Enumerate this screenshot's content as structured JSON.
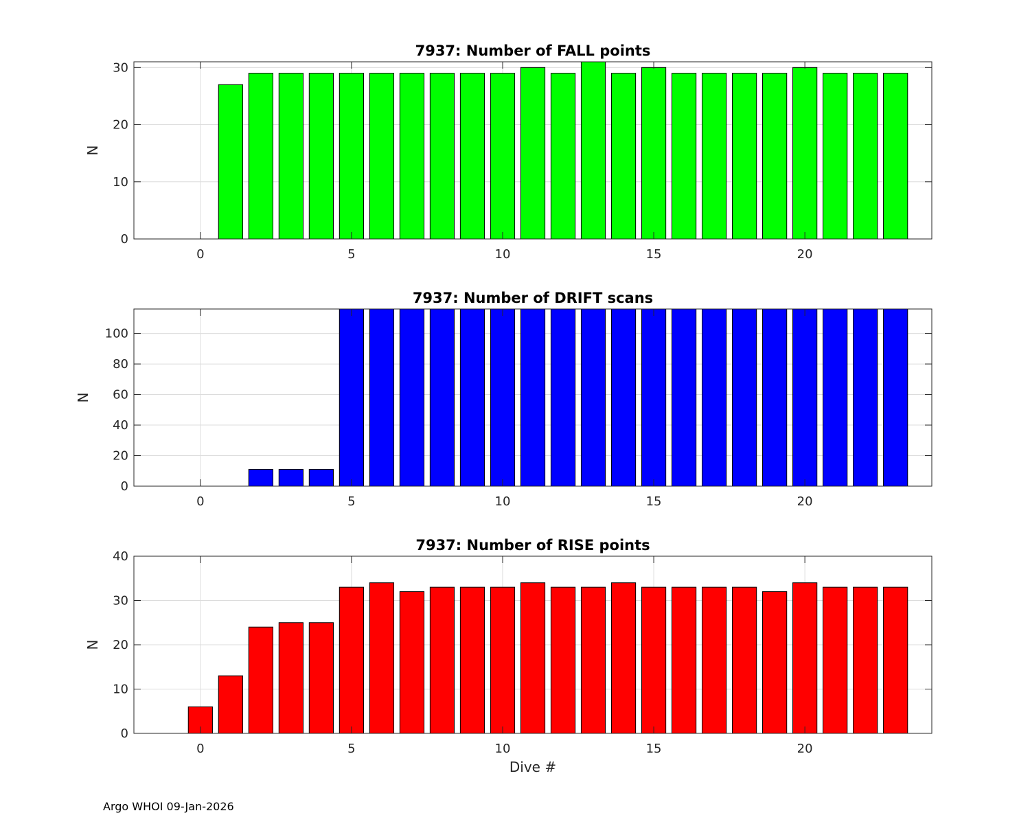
{
  "footer": "Argo WHOI 09-Jan-2026",
  "chart_data": [
    {
      "type": "bar",
      "title": "7937: Number of FALL points",
      "ylabel": "N",
      "xlabel": "",
      "color": "#00ff00",
      "xlim": [
        -2.2,
        24.2
      ],
      "ylim": [
        0,
        31
      ],
      "xticks": [
        0,
        5,
        10,
        15,
        20
      ],
      "yticks": [
        0,
        10,
        20,
        30
      ],
      "x": [
        1,
        2,
        3,
        4,
        5,
        6,
        7,
        8,
        9,
        10,
        11,
        12,
        13,
        14,
        15,
        16,
        17,
        18,
        19,
        20,
        21,
        22,
        23
      ],
      "values": [
        27,
        29,
        29,
        29,
        29,
        29,
        29,
        29,
        29,
        29,
        30,
        29,
        31,
        29,
        30,
        29,
        29,
        29,
        29,
        30,
        29,
        29,
        29
      ]
    },
    {
      "type": "bar",
      "title": "7937: Number of DRIFT scans",
      "ylabel": "N",
      "xlabel": "",
      "color": "#0000ff",
      "xlim": [
        -2.2,
        24.2
      ],
      "ylim": [
        0,
        116
      ],
      "xticks": [
        0,
        5,
        10,
        15,
        20
      ],
      "yticks": [
        0,
        20,
        40,
        60,
        80,
        100
      ],
      "x": [
        2,
        3,
        4,
        5,
        6,
        7,
        8,
        9,
        10,
        11,
        12,
        13,
        14,
        15,
        16,
        17,
        18,
        19,
        20,
        21,
        22,
        23
      ],
      "values": [
        11,
        11,
        11,
        116,
        116,
        116,
        116,
        116,
        116,
        116,
        116,
        116,
        116,
        116,
        116,
        116,
        116,
        116,
        116,
        116,
        116,
        116
      ]
    },
    {
      "type": "bar",
      "title": "7937: Number of RISE points",
      "ylabel": "N",
      "xlabel": "Dive #",
      "color": "#ff0000",
      "xlim": [
        -2.2,
        24.2
      ],
      "ylim": [
        0,
        40
      ],
      "xticks": [
        0,
        5,
        10,
        15,
        20
      ],
      "yticks": [
        0,
        10,
        20,
        30,
        40
      ],
      "x": [
        0,
        1,
        2,
        3,
        4,
        5,
        6,
        7,
        8,
        9,
        10,
        11,
        12,
        13,
        14,
        15,
        16,
        17,
        18,
        19,
        20,
        21,
        22,
        23
      ],
      "values": [
        6,
        13,
        24,
        25,
        25,
        33,
        34,
        32,
        33,
        33,
        33,
        34,
        33,
        33,
        34,
        33,
        33,
        33,
        33,
        32,
        34,
        33,
        33,
        33
      ]
    }
  ]
}
